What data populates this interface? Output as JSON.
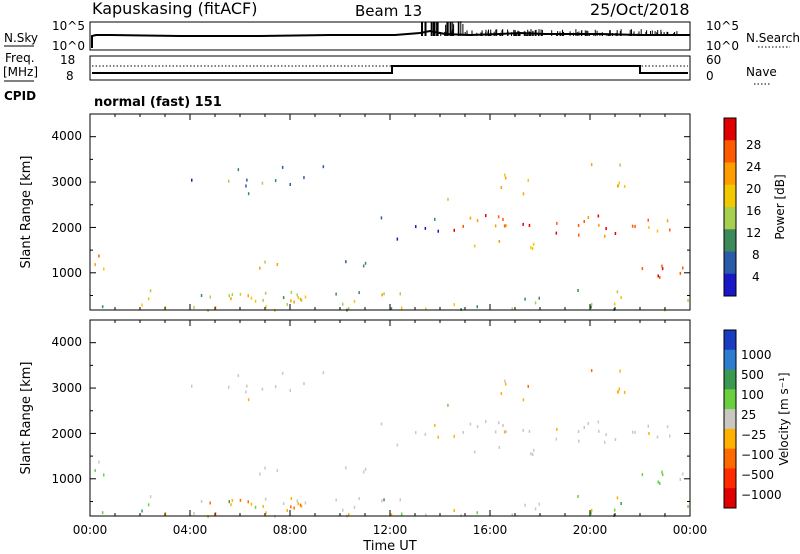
{
  "header": {
    "station": "Kapuskasing (fitACF)",
    "beam": "Beam 13",
    "date": "25/Oct/2018"
  },
  "noise_panel": {
    "left_label": "N.Sky",
    "left_ticks": [
      "10^5",
      "10^0"
    ],
    "right_ticks": [
      "10^5",
      "10^0"
    ],
    "right_label": "N.Search"
  },
  "freq_panel": {
    "left_label_1": "Freq.",
    "left_label_2": "[MHz]",
    "left_ticks": [
      "18",
      "8"
    ],
    "right_ticks": [
      "60",
      "0"
    ],
    "right_label": "Nave",
    "cpid_label": "CPID",
    "mode_text": "normal (fast) 151"
  },
  "chart_data": [
    {
      "type": "heatmap",
      "name": "power",
      "ylabel": "Slant Range [km]",
      "yticks": [
        "4000",
        "3000",
        "2000",
        "1000"
      ],
      "colorbar_label": "Power [dB]",
      "colorbar_ticks": [
        "28",
        "24",
        "20",
        "16",
        "12",
        "8",
        "4"
      ],
      "colorbar_colors": [
        "#e00000",
        "#ff5a00",
        "#ff9c00",
        "#f2c800",
        "#a8d050",
        "#3c8a5a",
        "#2a5aa8",
        "#1818c8"
      ],
      "ylim": [
        180,
        4500
      ]
    },
    {
      "type": "heatmap",
      "name": "velocity",
      "ylabel": "Slant Range [km]",
      "yticks": [
        "4000",
        "3000",
        "2000",
        "1000"
      ],
      "colorbar_label": "Velocity [m s⁻¹]",
      "colorbar_ticks": [
        "1000",
        "500",
        "100",
        "25",
        "−25",
        "−100",
        "−500",
        "−1000"
      ],
      "colorbar_colors": [
        "#1a3cc0",
        "#2e7cd0",
        "#3a9850",
        "#6ad040",
        "#c8c8c0",
        "#ffb000",
        "#ff6a00",
        "#ff2a00",
        "#e00000"
      ],
      "ylim": [
        180,
        4500
      ]
    }
  ],
  "time_axis": {
    "ticks": [
      "00:00",
      "04:00",
      "08:00",
      "12:00",
      "16:00",
      "20:00",
      "00:00"
    ],
    "label": "Time UT"
  }
}
